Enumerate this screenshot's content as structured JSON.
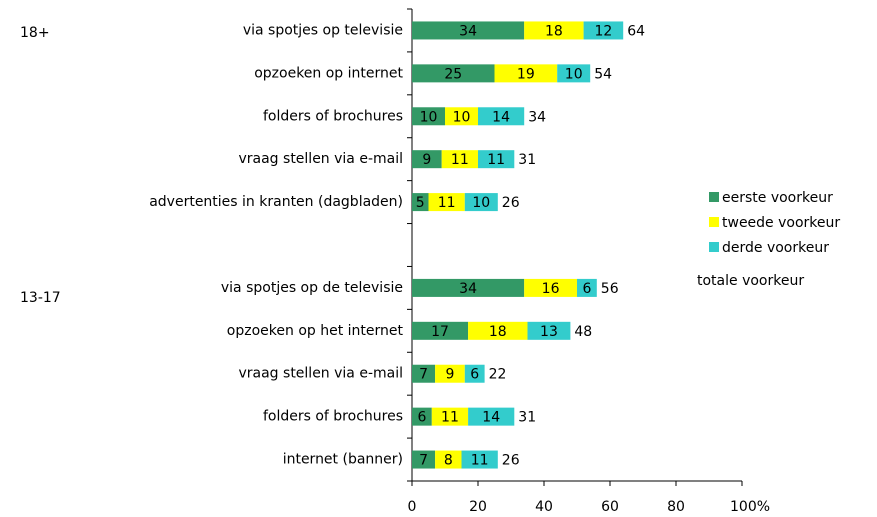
{
  "chart_data": {
    "type": "stacked_bar_horizontal",
    "annotations": [
      "18+",
      "13-17"
    ],
    "categories": [
      "via spotjes op televisie",
      "opzoeken op internet",
      "folders of brochures",
      "vraag stellen via e-mail",
      "advertenties in kranten (dagbladen)",
      null,
      "via spotjes op de televisie",
      "opzoeken op het internet",
      "vraag stellen via e-mail",
      "folders of brochures",
      "internet (banner)"
    ],
    "series": [
      {
        "name": "eerste voorkeur",
        "color": "#339966",
        "values": [
          34,
          25,
          10,
          9,
          5,
          null,
          34,
          17,
          7,
          6,
          7
        ]
      },
      {
        "name": "tweede voorkeur",
        "color": "#ffff00",
        "values": [
          18,
          19,
          10,
          11,
          11,
          null,
          16,
          18,
          9,
          11,
          8
        ]
      },
      {
        "name": "derde voorkeur",
        "color": "#33cccc",
        "values": [
          12,
          10,
          14,
          11,
          10,
          null,
          6,
          13,
          6,
          14,
          11
        ]
      }
    ],
    "totals_name": "totale voorkeur",
    "totals": [
      64,
      54,
      34,
      31,
      26,
      null,
      56,
      48,
      22,
      31,
      26
    ],
    "xlim": [
      0,
      100
    ],
    "xticks": [
      0,
      20,
      40,
      60,
      80,
      {
        "value": 100,
        "label": "100%"
      }
    ]
  }
}
